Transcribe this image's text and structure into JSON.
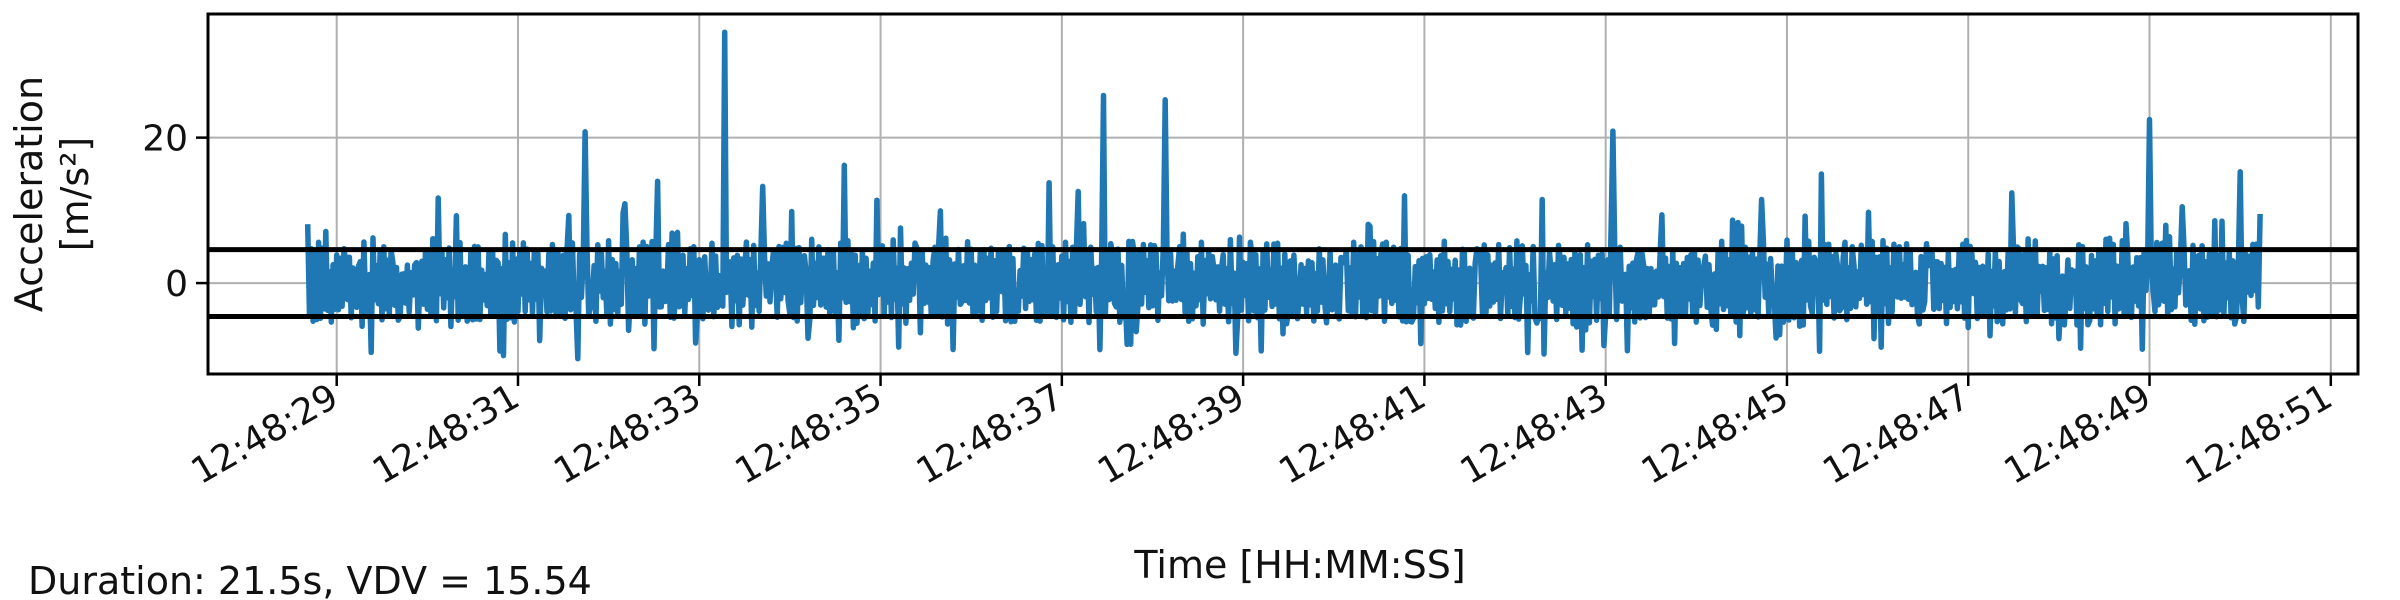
{
  "chart_data": {
    "type": "line",
    "ylabel_line1": "Acceleration",
    "ylabel_line2": "[m/s²]",
    "xlabel": "Time [HH:MM:SS]",
    "note": "Duration: 21.5s, VDV = 15.54",
    "grid": true,
    "ylim": [
      -12.5,
      37
    ],
    "yticks": [
      0,
      20
    ],
    "xlim": [
      "12:48:27.58",
      "12:48:51.30"
    ],
    "xticks": [
      "12:48:29",
      "12:48:31",
      "12:48:33",
      "12:48:35",
      "12:48:37",
      "12:48:39",
      "12:48:41",
      "12:48:43",
      "12:48:45",
      "12:48:47",
      "12:48:49",
      "12:48:51"
    ],
    "hlines": [
      4.6,
      -4.6
    ],
    "series": [
      {
        "color": "#1f77b4",
        "x_start": "12:48:28.68",
        "x_end": "12:48:50.23",
        "notes_for_signal": "Dense oscillating acceleration signal, approximately within ±5 m/s² with spikes",
        "peaks": [
          {
            "t": "12:48:31.73",
            "v": 20.8
          },
          {
            "t": "12:48:33.27",
            "v": 34.5
          },
          {
            "t": "12:48:37.45",
            "v": 25.8
          },
          {
            "t": "12:48:38.14",
            "v": 25.2
          },
          {
            "t": "12:48:43.08",
            "v": 20.9
          },
          {
            "t": "12:48:48.99",
            "v": 22.5
          },
          {
            "t": "12:48:32.54",
            "v": 14.0
          },
          {
            "t": "12:48:34.60",
            "v": 16.2
          },
          {
            "t": "12:48:36.86",
            "v": 13.8
          },
          {
            "t": "12:48:45.37",
            "v": 15.0
          },
          {
            "t": "12:48:49.99",
            "v": 15.3
          },
          {
            "t": "12:48:30.11",
            "v": 11.7
          },
          {
            "t": "12:48:31.55",
            "v": 9.3
          },
          {
            "t": "12:48:32.18",
            "v": 10.9
          },
          {
            "t": "12:48:33.69",
            "v": 13.3
          },
          {
            "t": "12:48:34.95",
            "v": 11.4
          },
          {
            "t": "12:48:37.18",
            "v": 12.6
          },
          {
            "t": "12:48:40.78",
            "v": 12.0
          },
          {
            "t": "12:48:42.30",
            "v": 11.5
          },
          {
            "t": "12:48:44.71",
            "v": 11.5
          },
          {
            "t": "12:48:47.47",
            "v": 12.4
          },
          {
            "t": "12:48:49.36",
            "v": 10.5
          }
        ],
        "troughs": [
          {
            "t": "12:48:31.66",
            "v": -10.4
          },
          {
            "t": "12:48:42.97",
            "v": -8.6
          },
          {
            "t": "12:48:35.20",
            "v": -8.8
          },
          {
            "t": "12:48:37.75",
            "v": -8.4
          }
        ]
      }
    ]
  }
}
